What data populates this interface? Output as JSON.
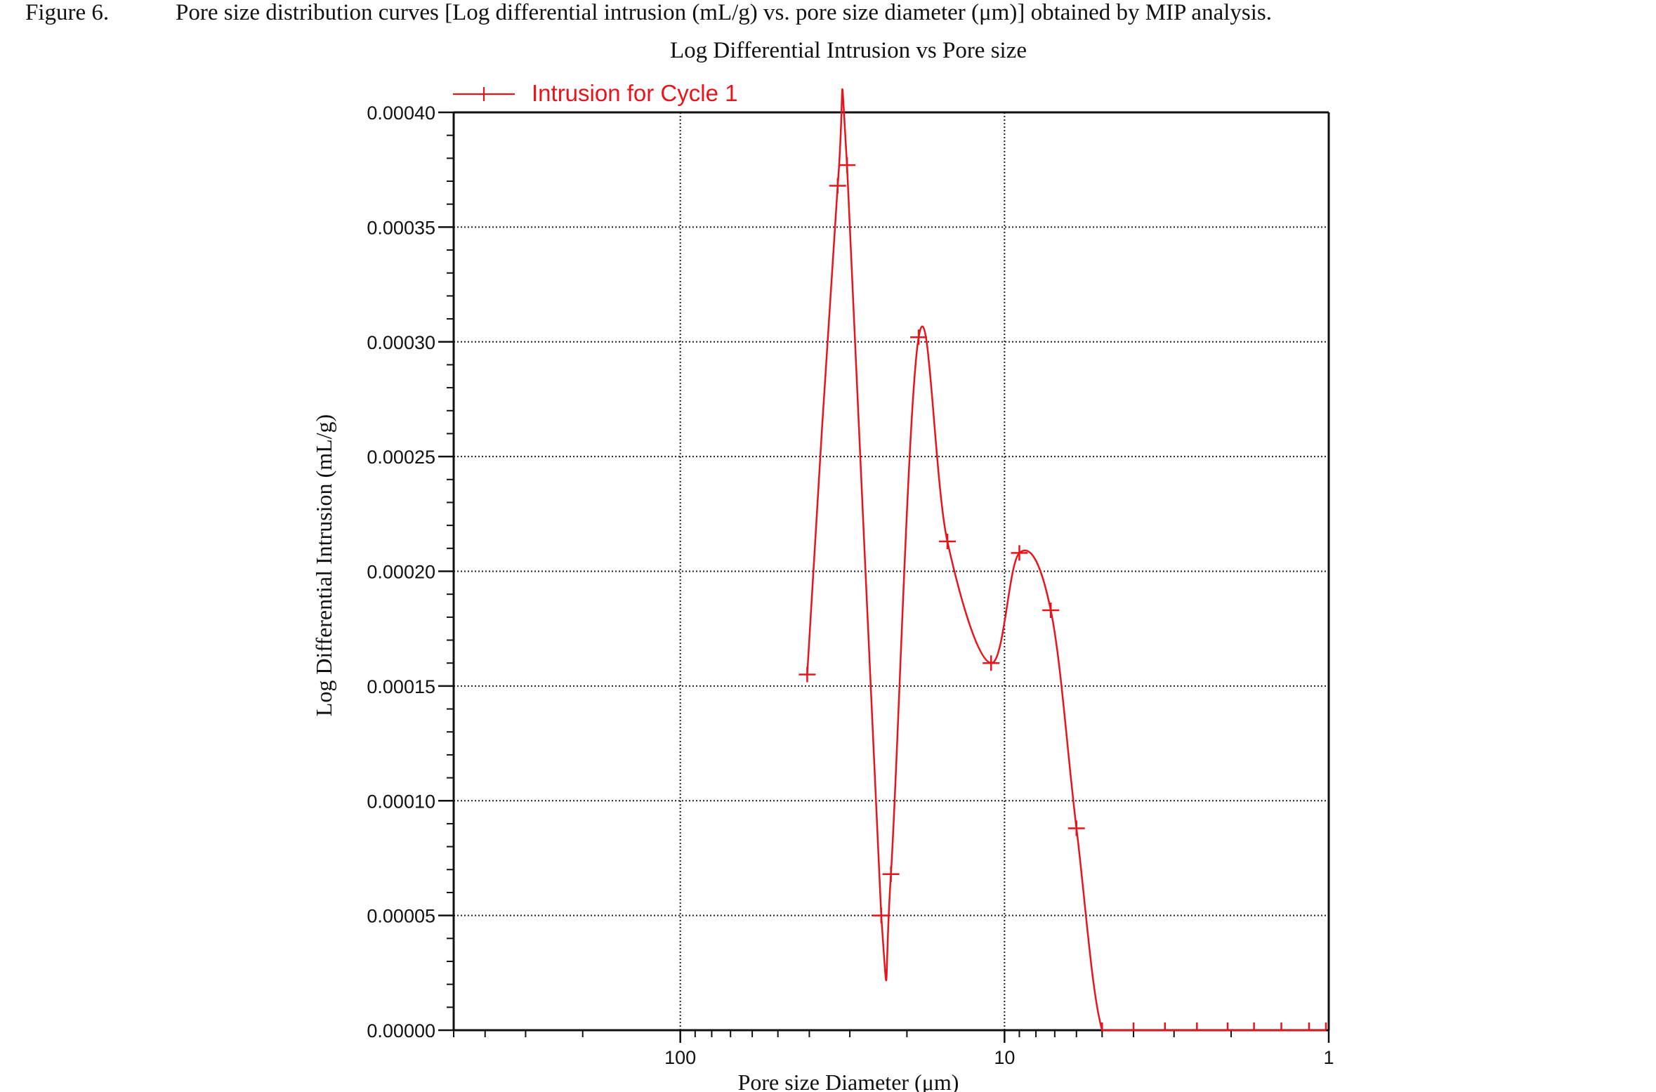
{
  "caption": {
    "figure_label": "Figure 6.",
    "text": "Pore size distribution curves [Log differential intrusion (mL/g) vs. pore size diameter (μm)] obtained by MIP analysis."
  },
  "chart_data": {
    "type": "line",
    "title": "Log Differential Intrusion vs Pore size",
    "xlabel": "Pore size Diameter (μm)",
    "ylabel": "Log Differential Intrusion (mL/g)",
    "x_scale": "log",
    "x_reversed": true,
    "xlim": [
      500,
      1
    ],
    "ylim": [
      0,
      0.0004
    ],
    "x_ticks": [
      {
        "value": 100,
        "label": "100"
      },
      {
        "value": 10,
        "label": "10"
      },
      {
        "value": 1,
        "label": "1"
      }
    ],
    "y_ticks": [
      {
        "value": 0.0,
        "label": "0.00000"
      },
      {
        "value": 5e-05,
        "label": "0.00005"
      },
      {
        "value": 0.0001,
        "label": "0.00010"
      },
      {
        "value": 0.00015,
        "label": "0.00015"
      },
      {
        "value": 0.0002,
        "label": "0.00020"
      },
      {
        "value": 0.00025,
        "label": "0.00025"
      },
      {
        "value": 0.0003,
        "label": "0.00030"
      },
      {
        "value": 0.00035,
        "label": "0.00035"
      },
      {
        "value": 0.0004,
        "label": "0.00040"
      }
    ],
    "grid": true,
    "legend_position": "top-left",
    "series": [
      {
        "name": "Intrusion for Cycle 1",
        "color": "#e8141c",
        "marker": "plus",
        "x": [
          40.6,
          32.7,
          30.6,
          24.0,
          22.4,
          18.4,
          15.0,
          11.0,
          9.0,
          7.2,
          6.0,
          5.0,
          4.0,
          3.2,
          2.55,
          2.05,
          1.7,
          1.4,
          1.15,
          1.02
        ],
        "y": [
          0.000155,
          0.000368,
          0.000377,
          5e-05,
          6.8e-05,
          0.000302,
          0.000213,
          0.00016,
          0.000208,
          0.000183,
          8.8e-05,
          0,
          0,
          0,
          0,
          0,
          0,
          0,
          0,
          0
        ]
      }
    ]
  }
}
